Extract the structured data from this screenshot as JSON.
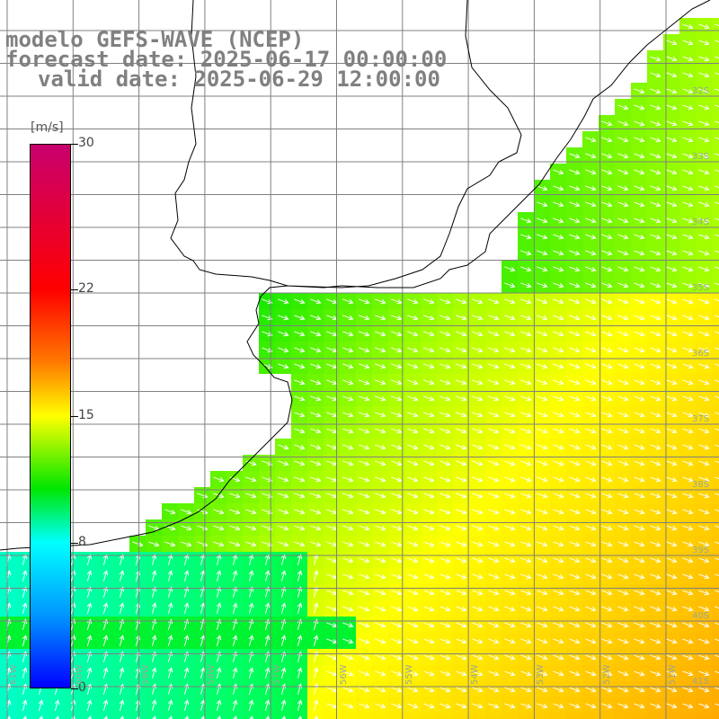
{
  "title": {
    "line1": "modelo GEFS-WAVE (NCEP)",
    "line2": "forecast date: 2025-06-17 00:00:00",
    "line3": "valid date: 2025-06-29 12:00:00"
  },
  "colorbar": {
    "unit": "[m/s]",
    "ticks": [
      {
        "label": "30",
        "value": 30
      },
      {
        "label": "22",
        "value": 22
      },
      {
        "label": "15",
        "value": 15
      },
      {
        "label": "8",
        "value": 8
      },
      {
        "label": "0",
        "value": 0
      }
    ],
    "colors": [
      "#0000ff",
      "#0096ff",
      "#00ffff",
      "#00e600",
      "#ffff00",
      "#ff7800",
      "#ff0000",
      "#c8006e"
    ]
  },
  "latitude_labels": [
    "32S",
    "33S",
    "34S",
    "35S",
    "36S",
    "37S",
    "38S",
    "39S",
    "40S",
    "41S"
  ],
  "longitude_labels": [
    "61W",
    "60W",
    "59W",
    "58W",
    "57W",
    "56W",
    "55W",
    "54W",
    "53W",
    "52W",
    "51W"
  ],
  "wind_field_description_colors": {
    "land": "#ffffff",
    "coast": "#000000",
    "grid": "#808080",
    "arrows": "#ffffff"
  }
}
